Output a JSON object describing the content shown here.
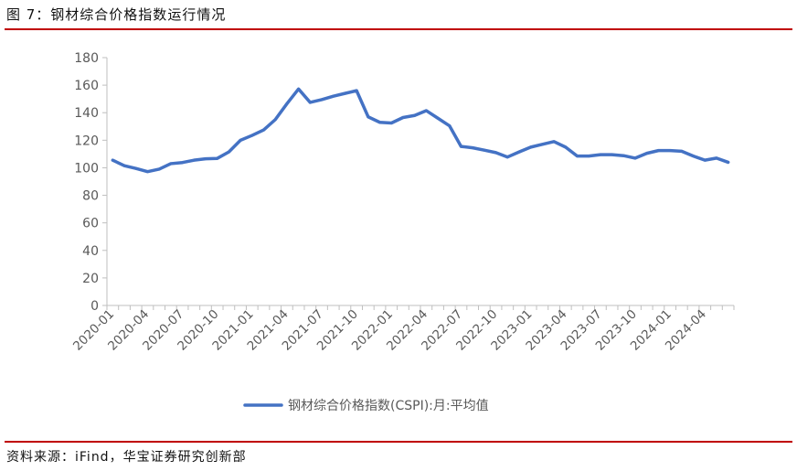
{
  "figure": {
    "title": "图 7：钢材综合价格指数运行情况",
    "source": "资料来源：iFind，华宝证券研究创新部"
  },
  "colors": {
    "accent_rule": "#c00000",
    "series_line": "#4472c4",
    "axis": "#bfbfbf",
    "text": "#595959"
  },
  "chart_data": {
    "type": "line",
    "title": "",
    "xlabel": "",
    "ylabel": "",
    "ylim": [
      0,
      180
    ],
    "yticks": [
      0,
      20,
      40,
      60,
      80,
      100,
      120,
      140,
      160,
      180
    ],
    "grid": false,
    "legend_position": "bottom-center",
    "x_tick_labels": [
      "2020-01",
      "2020-04",
      "2020-07",
      "2020-10",
      "2021-01",
      "2021-04",
      "2021-07",
      "2021-10",
      "2022-01",
      "2022-04",
      "2022-07",
      "2022-10",
      "2023-01",
      "2023-04",
      "2023-07",
      "2023-10",
      "2024-01",
      "2024-04"
    ],
    "x": [
      "2020-01",
      "2020-02",
      "2020-03",
      "2020-04",
      "2020-05",
      "2020-06",
      "2020-07",
      "2020-08",
      "2020-09",
      "2020-10",
      "2020-11",
      "2020-12",
      "2021-01",
      "2021-02",
      "2021-03",
      "2021-04",
      "2021-05",
      "2021-06",
      "2021-07",
      "2021-08",
      "2021-09",
      "2021-10",
      "2021-11",
      "2021-12",
      "2022-01",
      "2022-02",
      "2022-03",
      "2022-04",
      "2022-05",
      "2022-06",
      "2022-07",
      "2022-08",
      "2022-09",
      "2022-10",
      "2022-11",
      "2022-12",
      "2023-01",
      "2023-02",
      "2023-03",
      "2023-04",
      "2023-05",
      "2023-06",
      "2023-07",
      "2023-08",
      "2023-09",
      "2023-10",
      "2023-11",
      "2023-12",
      "2024-01",
      "2024-02",
      "2024-03",
      "2024-04",
      "2024-05",
      "2024-06"
    ],
    "series": [
      {
        "name": "钢材综合价格指数(CSPI):月:平均值",
        "values": [
          105.5,
          101.5,
          99.5,
          97.2,
          99.0,
          103.0,
          103.8,
          105.5,
          106.5,
          106.8,
          111.5,
          120.0,
          123.5,
          127.5,
          135.0,
          146.5,
          157.2,
          147.5,
          149.5,
          152.0,
          154.0,
          156.0,
          137.0,
          133.0,
          132.5,
          136.5,
          138.0,
          141.5,
          136.0,
          130.5,
          115.5,
          114.5,
          112.8,
          111.0,
          107.8,
          111.5,
          115.0,
          117.0,
          119.0,
          115.0,
          108.5,
          108.5,
          109.5,
          109.5,
          108.8,
          107.0,
          110.5,
          112.5,
          112.5,
          112.0,
          108.5,
          105.5,
          107.0,
          104.0
        ]
      }
    ]
  }
}
